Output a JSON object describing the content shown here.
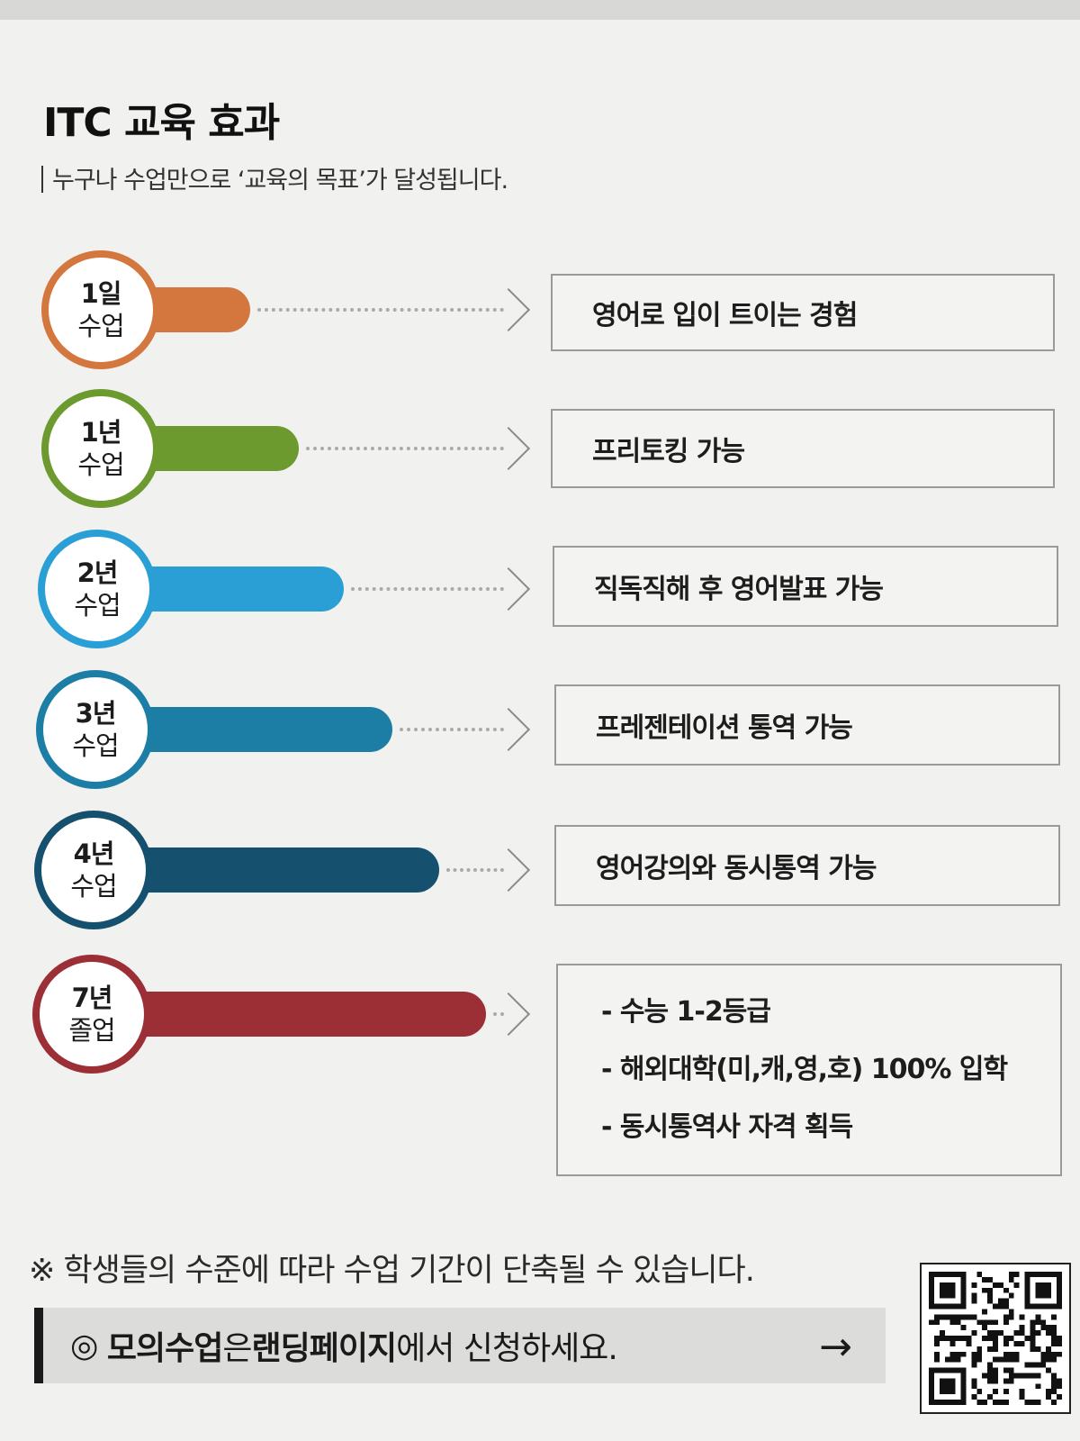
{
  "header": {
    "title": "ITC 교육 효과",
    "subtitle": "누구나 수업만으로 ‘교육의 목표’가 달성됩니다."
  },
  "stages": [
    {
      "line1": "1일",
      "line2": "수업",
      "color": "#d4773f",
      "text": "영어로 입이 트이는 경험"
    },
    {
      "line1": "1년",
      "line2": "수업",
      "color": "#6c9a2e",
      "text": "프리토킹 가능"
    },
    {
      "line1": "2년",
      "line2": "수업",
      "color": "#2a9fd6",
      "text": "직독직해 후 영어발표 가능"
    },
    {
      "line1": "3년",
      "line2": "수업",
      "color": "#1d7ea5",
      "text": "프레젠테이션 통역 가능"
    },
    {
      "line1": "4년",
      "line2": "수업",
      "color": "#16506f",
      "text": "영어강의와 동시통역 가능"
    },
    {
      "line1": "7년",
      "line2": "졸업",
      "color": "#9b2f35",
      "items": [
        "- 수능 1-2등급",
        "- 해외대학(미,캐,영,호) 100% 입학",
        "- 동시통역사 자격 획득"
      ]
    }
  ],
  "note": "※ 학생들의 수준에 따라 수업 기간이 단축될 수 있습니다.",
  "cta": {
    "icon": "◎",
    "bold1": "모의수업",
    "mid": "은 ",
    "bold2": "랜딩페이지",
    "rest": "에서 신청하세요.",
    "arrow": "→"
  },
  "qr_icon": "qr-code-icon"
}
